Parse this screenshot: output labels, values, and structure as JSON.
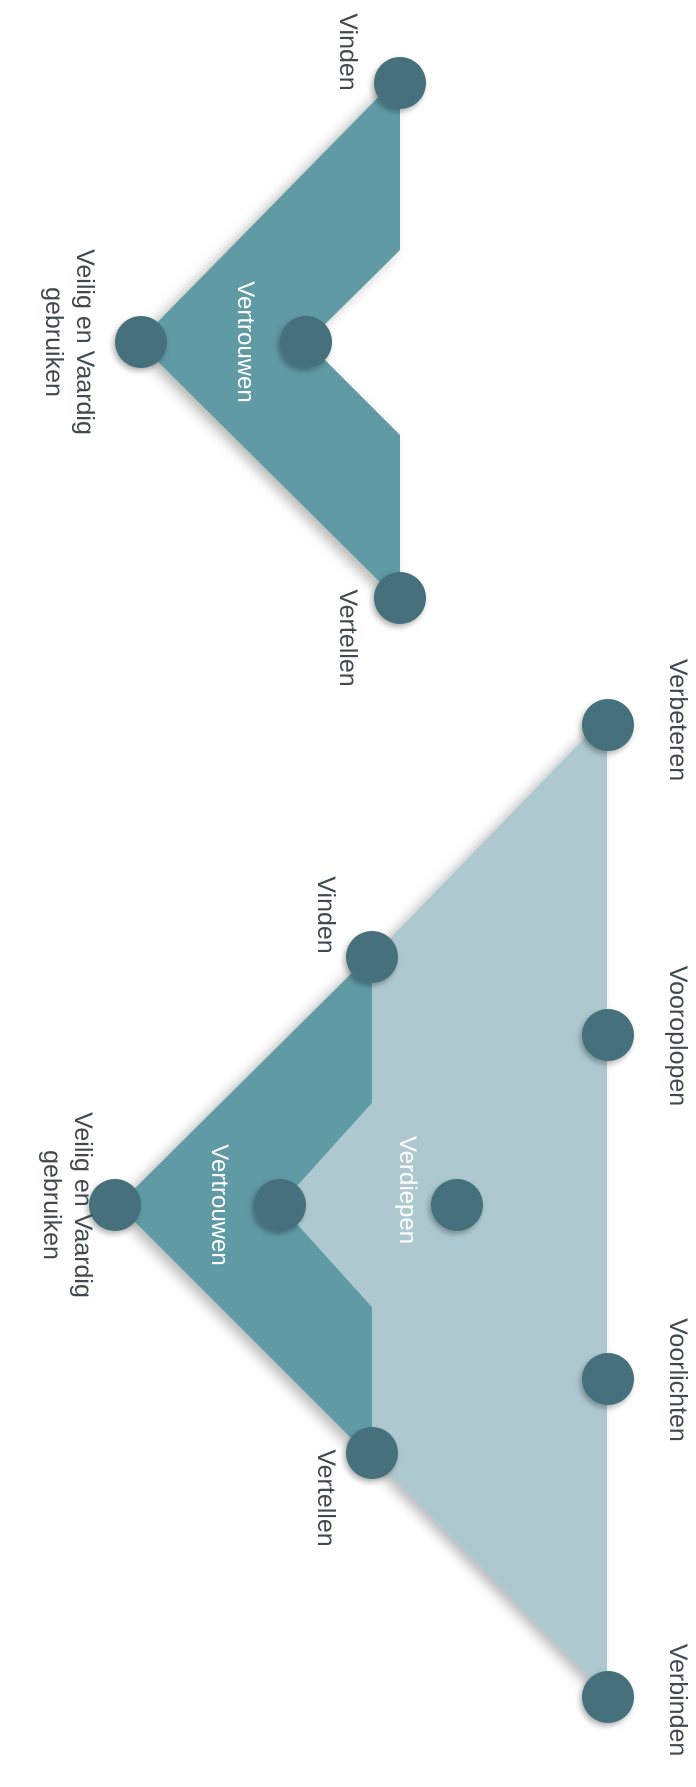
{
  "colors": {
    "dark_shape": "#5e9aa5",
    "light_shape": "#adc9cf",
    "node": "#44707c",
    "label": "#3f4a50",
    "inner_label": "#ffffff"
  },
  "top_diagram": {
    "shape_label": "Vertrouwen",
    "nodes": {
      "vinden": "Vinden",
      "veilig_line1": "Veilig en Vaardig",
      "veilig_line2": "gebruiken",
      "vertellen": "Vertellen"
    }
  },
  "bottom_diagram": {
    "inner_shape_label": "Vertrouwen",
    "outer_shape_label": "Verdiepen",
    "nodes": {
      "verbeteren": "Verbeteren",
      "vinden": "Vinden",
      "vooroplopen": "Vooroplopen",
      "veilig_line1": "Veilig en Vaardig",
      "veilig_line2": "gebruiken",
      "voorlichten": "Voorlichten",
      "vertellen": "Vertellen",
      "verbinden": "Verbinden"
    }
  }
}
